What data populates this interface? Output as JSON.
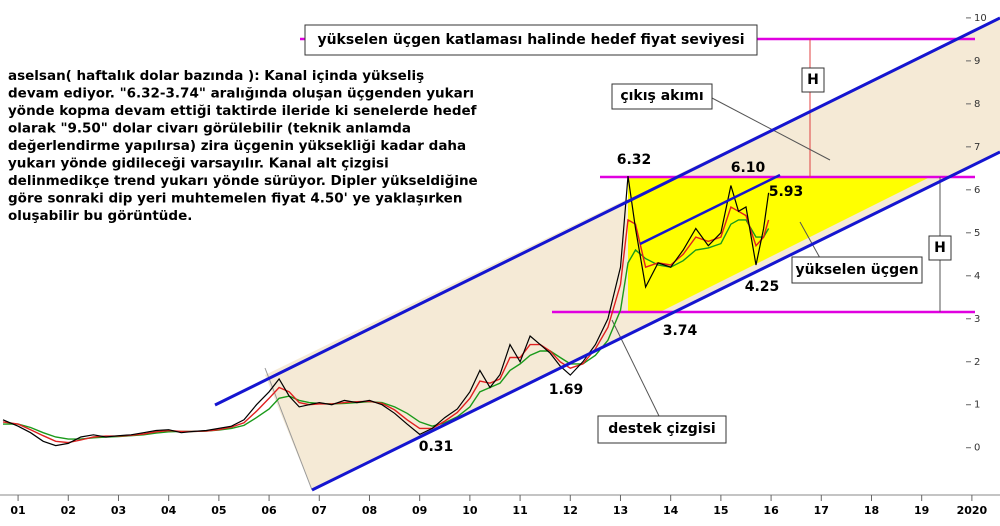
{
  "chart_data": {
    "type": "line",
    "title": "yükselen üçgen katlaması halinde hedef fiyat seviyesi",
    "commentary": [
      "aselsan( haftalık dolar bazında ): Kanal içinda yükseliş",
      "devam ediyor. \"6.32-3.74\" aralığında oluşan üçgenden yukarı",
      "yönde kopma devam ettiği taktirde ileride ki senelerde hedef",
      "olarak \"9.50\" dolar civarı görülebilir (teknik anlamda",
      "değerlendirme yapılırsa) zira üçgenin yüksekliği kadar daha",
      "yukarı yönde gidileceği varsayılır. Kanal alt çizgisi",
      "delinmedikçe trend yukarı yönde sürüyor. Dipler yükseldiğine",
      "göre sonraki dip yeri muhtemelen fiyat 4.50' ye yaklaşırken",
      "oluşabilir bu görüntüde."
    ],
    "annotations": [
      "çıkış akımı",
      "H",
      "H",
      "6.32",
      "6.10",
      "5.93",
      "4.25",
      "3.74",
      "1.69",
      "0.31",
      "yükselen üçgen",
      "destek çizgisi"
    ],
    "x": [
      2000.7,
      2001.0,
      2001.25,
      2001.5,
      2001.75,
      2002.0,
      2002.25,
      2002.5,
      2002.75,
      2003.0,
      2003.25,
      2003.5,
      2003.75,
      2004.0,
      2004.25,
      2004.5,
      2004.75,
      2005.0,
      2005.25,
      2005.5,
      2005.75,
      2006.0,
      2006.2,
      2006.4,
      2006.6,
      2006.8,
      2007.0,
      2007.25,
      2007.5,
      2007.75,
      2008.0,
      2008.25,
      2008.5,
      2008.75,
      2009.0,
      2009.25,
      2009.5,
      2009.75,
      2010.0,
      2010.2,
      2010.4,
      2010.6,
      2010.8,
      2011.0,
      2011.2,
      2011.4,
      2011.6,
      2011.8,
      2012.0,
      2012.25,
      2012.5,
      2012.75,
      2013.0,
      2013.15,
      2013.3,
      2013.5,
      2013.75,
      2014.0,
      2014.25,
      2014.5,
      2014.75,
      2015.0,
      2015.2,
      2015.35,
      2015.5,
      2015.7,
      2015.85,
      2015.95
    ],
    "series": [
      {
        "color": "#000000",
        "values": [
          0.65,
          0.5,
          0.35,
          0.15,
          0.05,
          0.1,
          0.25,
          0.3,
          0.25,
          0.28,
          0.3,
          0.35,
          0.4,
          0.42,
          0.35,
          0.38,
          0.4,
          0.45,
          0.5,
          0.65,
          1.0,
          1.3,
          1.6,
          1.2,
          0.95,
          1.0,
          1.05,
          1.0,
          1.1,
          1.05,
          1.1,
          1.0,
          0.8,
          0.55,
          0.31,
          0.45,
          0.7,
          0.9,
          1.3,
          1.8,
          1.4,
          1.7,
          2.4,
          2.0,
          2.6,
          2.4,
          2.2,
          1.9,
          1.69,
          2.0,
          2.4,
          3.0,
          4.2,
          6.32,
          5.1,
          3.74,
          4.3,
          4.2,
          4.6,
          5.1,
          4.7,
          5.0,
          6.1,
          5.5,
          5.6,
          4.25,
          5.1,
          5.93
        ]
      },
      {
        "color": "#e02020",
        "values": [
          0.6,
          0.55,
          0.42,
          0.28,
          0.15,
          0.12,
          0.18,
          0.25,
          0.27,
          0.27,
          0.29,
          0.32,
          0.37,
          0.4,
          0.38,
          0.38,
          0.39,
          0.42,
          0.48,
          0.58,
          0.85,
          1.15,
          1.4,
          1.3,
          1.05,
          1.0,
          1.02,
          1.02,
          1.05,
          1.07,
          1.08,
          1.03,
          0.88,
          0.65,
          0.45,
          0.45,
          0.62,
          0.82,
          1.15,
          1.55,
          1.5,
          1.6,
          2.1,
          2.1,
          2.4,
          2.4,
          2.25,
          2.0,
          1.85,
          1.95,
          2.3,
          2.8,
          3.8,
          5.3,
          5.2,
          4.2,
          4.3,
          4.25,
          4.5,
          4.9,
          4.8,
          4.9,
          5.6,
          5.5,
          5.4,
          4.7,
          4.9,
          5.3
        ]
      },
      {
        "color": "#1a9a1a",
        "values": [
          0.55,
          0.55,
          0.47,
          0.35,
          0.25,
          0.2,
          0.2,
          0.23,
          0.25,
          0.26,
          0.28,
          0.3,
          0.34,
          0.37,
          0.38,
          0.38,
          0.39,
          0.41,
          0.45,
          0.52,
          0.7,
          0.9,
          1.15,
          1.2,
          1.1,
          1.05,
          1.03,
          1.02,
          1.03,
          1.05,
          1.07,
          1.05,
          0.95,
          0.8,
          0.6,
          0.5,
          0.58,
          0.72,
          0.95,
          1.3,
          1.4,
          1.5,
          1.8,
          1.95,
          2.15,
          2.25,
          2.25,
          2.1,
          1.95,
          1.95,
          2.15,
          2.5,
          3.2,
          4.3,
          4.6,
          4.4,
          4.25,
          4.2,
          4.35,
          4.6,
          4.65,
          4.75,
          5.2,
          5.3,
          5.3,
          4.9,
          4.9,
          5.1
        ]
      }
    ],
    "xlim": [
      2000.64,
      2020.56
    ],
    "ylim": [
      -1.1,
      10.3
    ],
    "xticks": [
      {
        "value": 2001,
        "label": "01"
      },
      {
        "value": 2002,
        "label": "02"
      },
      {
        "value": 2003,
        "label": "03"
      },
      {
        "value": 2004,
        "label": "04"
      },
      {
        "value": 2005,
        "label": "05"
      },
      {
        "value": 2006,
        "label": "06"
      },
      {
        "value": 2007,
        "label": "07"
      },
      {
        "value": 2008,
        "label": "08"
      },
      {
        "value": 2009,
        "label": "09"
      },
      {
        "value": 2010,
        "label": "10"
      },
      {
        "value": 2011,
        "label": "11"
      },
      {
        "value": 2012,
        "label": "12"
      },
      {
        "value": 2013,
        "label": "13"
      },
      {
        "value": 2014,
        "label": "14"
      },
      {
        "value": 2015,
        "label": "15"
      },
      {
        "value": 2016,
        "label": "16"
      },
      {
        "value": 2017,
        "label": "17"
      },
      {
        "value": 2018,
        "label": "18"
      },
      {
        "value": 2019,
        "label": "19"
      },
      {
        "value": 2020,
        "label": "2020"
      }
    ],
    "yticks": [
      0,
      1,
      2,
      3,
      4,
      5,
      6,
      7,
      8,
      9,
      10
    ]
  }
}
